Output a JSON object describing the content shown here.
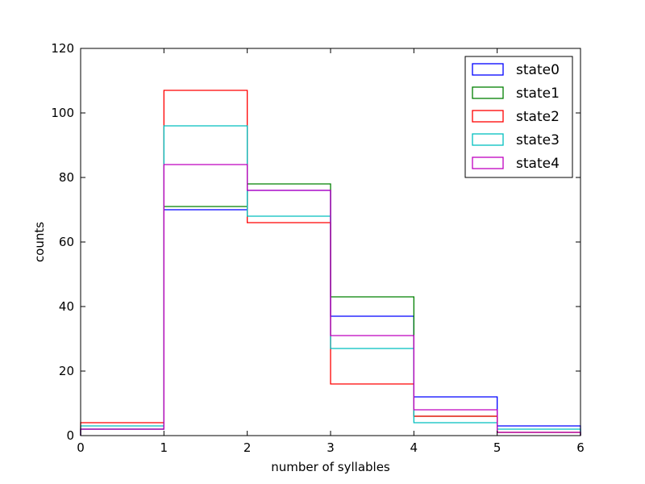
{
  "chart_data": {
    "type": "step-histogram",
    "xlabel": "number of syllables",
    "ylabel": "counts",
    "xlim": [
      0,
      6
    ],
    "ylim": [
      0,
      120
    ],
    "xticks": [
      0,
      1,
      2,
      3,
      4,
      5,
      6
    ],
    "yticks": [
      0,
      20,
      40,
      60,
      80,
      100,
      120
    ],
    "bin_edges": [
      0,
      1,
      2,
      3,
      4,
      5,
      6
    ],
    "grid": false,
    "legend_position": "top-right",
    "series": [
      {
        "name": "state0",
        "color": "#0000ff",
        "values": [
          2,
          70,
          76,
          37,
          12,
          3
        ]
      },
      {
        "name": "state1",
        "color": "#008000",
        "values": [
          2,
          71,
          78,
          43,
          6,
          1
        ]
      },
      {
        "name": "state2",
        "color": "#ff0000",
        "values": [
          4,
          107,
          66,
          16,
          6,
          1
        ]
      },
      {
        "name": "state3",
        "color": "#00bfbf",
        "values": [
          3,
          96,
          68,
          27,
          4,
          2
        ]
      },
      {
        "name": "state4",
        "color": "#bf00bf",
        "values": [
          2,
          84,
          76,
          31,
          8,
          1
        ]
      }
    ]
  }
}
